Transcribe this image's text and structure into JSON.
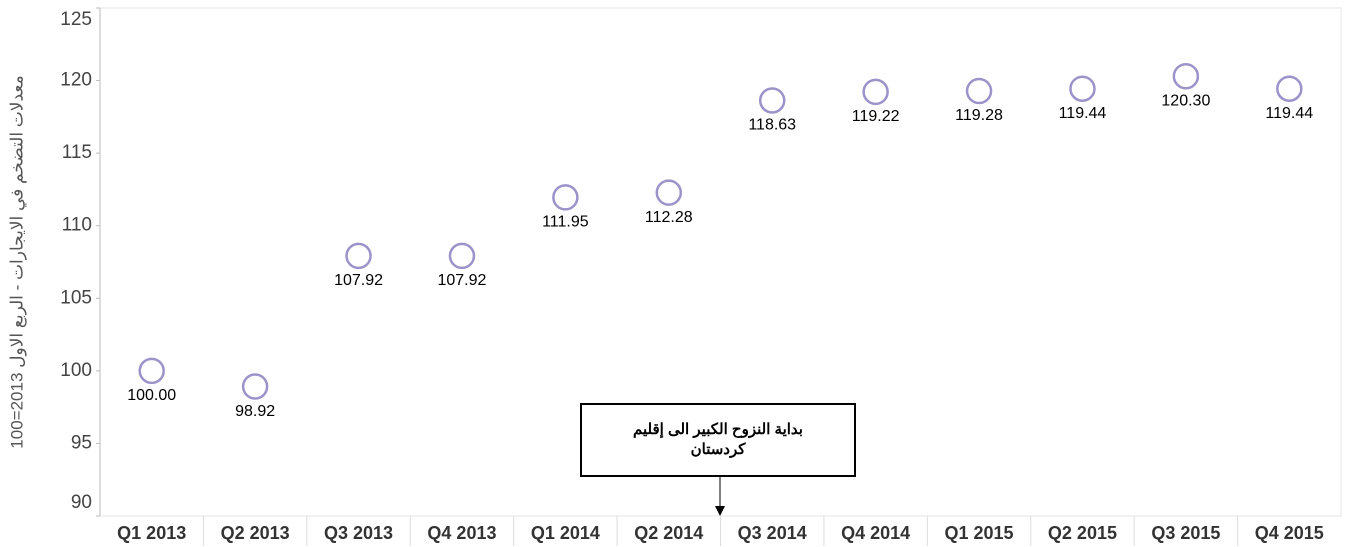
{
  "chart_data": {
    "type": "scatter",
    "y_label": "معدلات التضخم في الايجارات  - الربع الاول 2013=100",
    "annotation": "بداية النزوح الكبير الى إقليم كردستان",
    "categories": [
      "Q1 2013",
      "Q2 2013",
      "Q3 2013",
      "Q4 2013",
      "Q1 2014",
      "Q2 2014",
      "Q3 2014",
      "Q4 2014",
      "Q1 2015",
      "Q2 2015",
      "Q3 2015",
      "Q4 2015"
    ],
    "values": [
      100,
      98.92,
      107.92,
      107.92,
      111.95,
      112.28,
      118.63,
      119.22,
      119.28,
      119.44,
      120.3,
      119.44
    ],
    "value_labels": [
      "100.00",
      "98.92",
      "107.92",
      "107.92",
      "111.95",
      "112.28",
      "118.63",
      "119.22",
      "119.28",
      "119.44",
      "120.30",
      "119.44"
    ],
    "color": "#9b93c9",
    "ylim": [
      90,
      125
    ],
    "yticks": [
      90,
      95,
      100,
      105,
      110,
      115,
      120,
      125
    ],
    "grid": false
  }
}
